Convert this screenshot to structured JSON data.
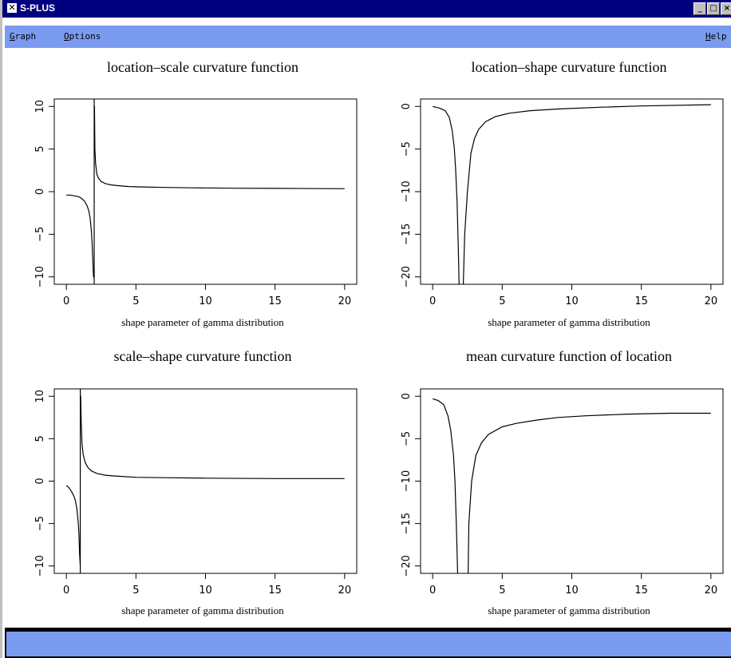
{
  "window": {
    "title": "S-PLUS"
  },
  "menubar": {
    "items": [
      {
        "mnemonic": "G",
        "rest": "raph"
      },
      {
        "mnemonic": "O",
        "rest": "ptions"
      }
    ],
    "help": {
      "mnemonic": "H",
      "rest": "elp"
    }
  },
  "window_buttons": {
    "minimize": "_",
    "maximize": "□",
    "close": "×"
  },
  "chart_data": [
    {
      "type": "line",
      "title": "location–scale curvature function",
      "xlabel": "shape parameter of gamma distribution",
      "ylabel": "",
      "xlim": [
        0,
        20
      ],
      "ylim": [
        -10,
        10
      ],
      "xticks": [
        "0",
        "5",
        "10",
        "15",
        "20"
      ],
      "yticks": [
        "-10",
        "-5",
        "0",
        "5",
        "10"
      ],
      "asymptote": 2.0,
      "series": [
        {
          "left": {
            "x": [
              0.0,
              0.3,
              0.6,
              0.9,
              1.1,
              1.3,
              1.5,
              1.6,
              1.7,
              1.8,
              1.85,
              1.9,
              1.95,
              2.0
            ],
            "y": [
              -0.4,
              -0.4,
              -0.5,
              -0.6,
              -0.8,
              -1.1,
              -1.7,
              -2.2,
              -3.0,
              -4.6,
              -6.0,
              -8.0,
              -10.0,
              -10.0
            ]
          },
          "right": {
            "x": [
              2.0,
              2.02,
              2.05,
              2.1,
              2.2,
              2.3,
              2.5,
              2.8,
              3.2,
              3.7,
              4.5,
              5.5,
              7,
              9,
              12,
              15,
              20
            ],
            "y": [
              10,
              10,
              5.0,
              3.3,
              2.0,
              1.6,
              1.2,
              0.95,
              0.8,
              0.7,
              0.6,
              0.55,
              0.5,
              0.45,
              0.4,
              0.38,
              0.35
            ]
          }
        }
      ]
    },
    {
      "type": "line",
      "title": "location–shape curvature function",
      "xlabel": "shape parameter of gamma distribution",
      "ylabel": "",
      "xlim": [
        0,
        20
      ],
      "ylim": [
        -20,
        0
      ],
      "xticks": [
        "0",
        "5",
        "10",
        "15",
        "20"
      ],
      "yticks": [
        "-20",
        "-15",
        "-10",
        "-5",
        "0"
      ],
      "asymptote": 2.0,
      "series": [
        {
          "left": {
            "x": [
              0.0,
              0.5,
              0.9,
              1.2,
              1.4,
              1.55,
              1.65,
              1.75,
              1.85,
              1.9
            ],
            "y": [
              0.0,
              -0.2,
              -0.5,
              -1.3,
              -2.8,
              -4.8,
              -7.3,
              -11,
              -17,
              -21
            ]
          },
          "right": {
            "x": [
              2.2,
              2.3,
              2.5,
              2.75,
              3.0,
              3.3,
              3.8,
              4.5,
              5.5,
              7,
              9,
              12,
              15,
              20
            ],
            "y": [
              -21,
              -15,
              -10,
              -5.5,
              -3.8,
              -2.7,
              -1.8,
              -1.2,
              -0.8,
              -0.5,
              -0.3,
              -0.1,
              0.05,
              0.2
            ]
          }
        }
      ]
    },
    {
      "type": "line",
      "title": "scale–shape curvature function",
      "xlabel": "shape parameter of gamma distribution",
      "ylabel": "",
      "xlim": [
        0,
        20
      ],
      "ylim": [
        -10,
        10
      ],
      "xticks": [
        "0",
        "5",
        "10",
        "15",
        "20"
      ],
      "yticks": [
        "-10",
        "-5",
        "0",
        "5",
        "10"
      ],
      "asymptote": 1.0,
      "series": [
        {
          "left": {
            "x": [
              0.0,
              0.2,
              0.4,
              0.55,
              0.65,
              0.75,
              0.85,
              0.9,
              0.95,
              1.0
            ],
            "y": [
              -0.5,
              -0.8,
              -1.3,
              -1.8,
              -2.3,
              -3.2,
              -4.8,
              -6.2,
              -8.5,
              -10.0
            ]
          },
          "right": {
            "x": [
              1.0,
              1.03,
              1.07,
              1.12,
              1.2,
              1.35,
              1.55,
              1.8,
              2.2,
              2.8,
              3.5,
              5,
              7,
              10,
              15,
              20
            ],
            "y": [
              10,
              10,
              7.0,
              4.5,
              3.2,
              2.2,
              1.6,
              1.2,
              0.9,
              0.7,
              0.6,
              0.45,
              0.4,
              0.35,
              0.3,
              0.3
            ]
          }
        }
      ]
    },
    {
      "type": "line",
      "title": "mean curvature function of location",
      "xlabel": "shape parameter of gamma distribution",
      "ylabel": "",
      "xlim": [
        0,
        20
      ],
      "ylim": [
        -20,
        0
      ],
      "xticks": [
        "0",
        "5",
        "10",
        "15",
        "20"
      ],
      "yticks": [
        "-20",
        "-15",
        "-10",
        "-5",
        "0"
      ],
      "asymptote": 2.0,
      "series": [
        {
          "left": {
            "x": [
              0.0,
              0.4,
              0.8,
              1.1,
              1.3,
              1.5,
              1.6,
              1.7,
              1.8
            ],
            "y": [
              -0.3,
              -0.5,
              -1.0,
              -2.3,
              -4.0,
              -7.0,
              -10,
              -15,
              -21
            ]
          },
          "right": {
            "x": [
              2.55,
              2.6,
              2.8,
              3.1,
              3.5,
              4.0,
              5.0,
              6.0,
              7.5,
              9,
              11,
              14,
              17,
              20
            ],
            "y": [
              -21,
              -15,
              -10,
              -7.0,
              -5.5,
              -4.5,
              -3.6,
              -3.2,
              -2.8,
              -2.5,
              -2.3,
              -2.1,
              -2.0,
              -2.0
            ]
          }
        }
      ]
    }
  ]
}
